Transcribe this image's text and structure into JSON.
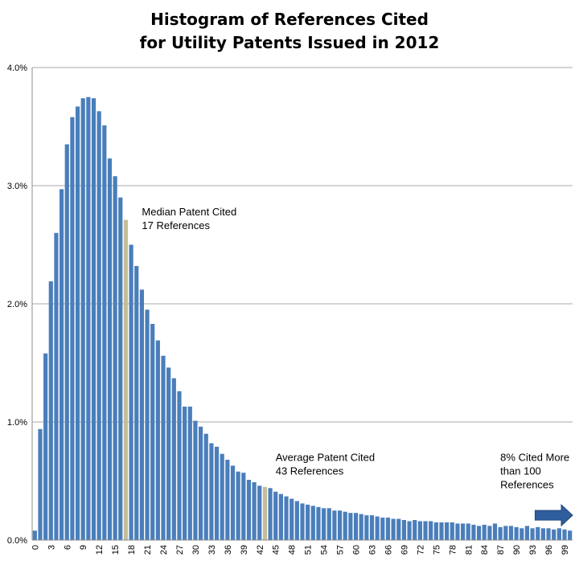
{
  "chart_data": {
    "type": "bar",
    "title": [
      "Histogram of References Cited",
      "for Utility Patents Issued in 2012"
    ],
    "xlabel": "",
    "ylabel": "",
    "ylim": [
      0,
      4.0
    ],
    "y_ticks": [
      "0.0%",
      "1.0%",
      "2.0%",
      "3.0%",
      "4.0%"
    ],
    "grid": true,
    "x_tick_labels": [
      "0",
      "3",
      "6",
      "9",
      "12",
      "15",
      "18",
      "21",
      "24",
      "27",
      "30",
      "33",
      "36",
      "39",
      "42",
      "45",
      "48",
      "51",
      "54",
      "57",
      "60",
      "63",
      "66",
      "69",
      "72",
      "75",
      "78",
      "81",
      "84",
      "87",
      "90",
      "93",
      "96",
      "99"
    ],
    "x_tick_step": 3,
    "categories_from": 0,
    "categories_to": 100,
    "values": [
      0.08,
      0.94,
      1.58,
      2.19,
      2.6,
      2.97,
      3.35,
      3.58,
      3.67,
      3.74,
      3.75,
      3.74,
      3.63,
      3.51,
      3.23,
      3.08,
      2.9,
      2.71,
      2.5,
      2.32,
      2.12,
      1.95,
      1.83,
      1.69,
      1.56,
      1.46,
      1.37,
      1.26,
      1.13,
      1.13,
      1.01,
      0.96,
      0.9,
      0.82,
      0.79,
      0.73,
      0.68,
      0.63,
      0.58,
      0.57,
      0.51,
      0.49,
      0.46,
      0.45,
      0.44,
      0.41,
      0.39,
      0.37,
      0.35,
      0.33,
      0.31,
      0.3,
      0.29,
      0.28,
      0.27,
      0.27,
      0.25,
      0.25,
      0.24,
      0.23,
      0.23,
      0.22,
      0.21,
      0.21,
      0.2,
      0.19,
      0.19,
      0.18,
      0.18,
      0.17,
      0.16,
      0.17,
      0.16,
      0.16,
      0.16,
      0.15,
      0.15,
      0.15,
      0.15,
      0.14,
      0.14,
      0.14,
      0.13,
      0.12,
      0.13,
      0.12,
      0.14,
      0.11,
      0.12,
      0.12,
      0.11,
      0.1,
      0.12,
      0.1,
      0.11,
      0.1,
      0.1,
      0.09,
      0.1,
      0.09,
      0.08
    ],
    "series_color": "#4a7ebb",
    "highlight_color": "#c4bd97",
    "highlights": [
      17,
      43
    ],
    "annotations": [
      {
        "lines": [
          "Median Patent Cited",
          "17 References"
        ],
        "anchor_x": 20.5,
        "anchor_y": 2.75
      },
      {
        "lines": [
          "Average Patent Cited",
          "43 References"
        ],
        "anchor_x": 45.5,
        "anchor_y": 0.67
      },
      {
        "lines": [
          "8% Cited More",
          "than 100",
          "References"
        ],
        "anchor_x": 87.5,
        "anchor_y": 0.67
      }
    ],
    "arrow": {
      "x_from": 94,
      "x_to": 101,
      "y": 0.21,
      "color": "#2e5e9e"
    }
  }
}
